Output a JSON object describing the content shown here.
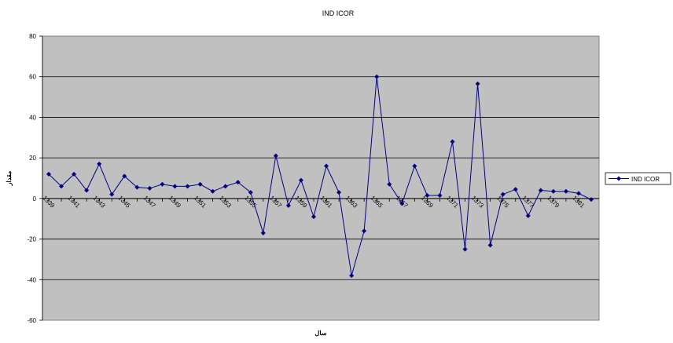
{
  "chart_data": {
    "type": "line",
    "title": "IND ICOR",
    "xlabel": "سال",
    "ylabel": "مقدار",
    "ylim": [
      -60,
      80
    ],
    "yticks": [
      -60,
      -40,
      -20,
      0,
      20,
      40,
      60,
      80
    ],
    "grid": true,
    "legend_position": "right",
    "x": [
      1339,
      1340,
      1341,
      1342,
      1343,
      1344,
      1345,
      1346,
      1347,
      1348,
      1349,
      1350,
      1351,
      1352,
      1353,
      1354,
      1355,
      1356,
      1357,
      1358,
      1359,
      1360,
      1361,
      1362,
      1363,
      1364,
      1365,
      1366,
      1367,
      1368,
      1369,
      1370,
      1371,
      1372,
      1373,
      1374,
      1375,
      1376,
      1377,
      1378,
      1379,
      1380,
      1381,
      1382
    ],
    "x_tick_labels": [
      "1339",
      "1341",
      "1343",
      "1345",
      "1347",
      "1349",
      "1351",
      "1353",
      "1355",
      "1357",
      "1359",
      "1361",
      "1363",
      "1365",
      "1367",
      "1369",
      "1371",
      "1373",
      "1375",
      "1377",
      "1379",
      "1381"
    ],
    "series": [
      {
        "name": "IND ICOR",
        "color": "#000080",
        "marker": "diamond",
        "values": [
          12,
          6,
          12,
          4,
          17,
          2,
          11,
          5.5,
          5,
          7,
          6,
          6,
          7,
          3.5,
          6,
          8,
          3,
          -17,
          21,
          -3.5,
          9,
          -9,
          16,
          3,
          -38,
          -16,
          60,
          7,
          -2.5,
          16,
          1.5,
          1.5,
          28,
          -25,
          56.5,
          -23,
          2,
          4.5,
          -8.5,
          4,
          3.5,
          3.5,
          2.5,
          -0.5
        ]
      }
    ]
  }
}
